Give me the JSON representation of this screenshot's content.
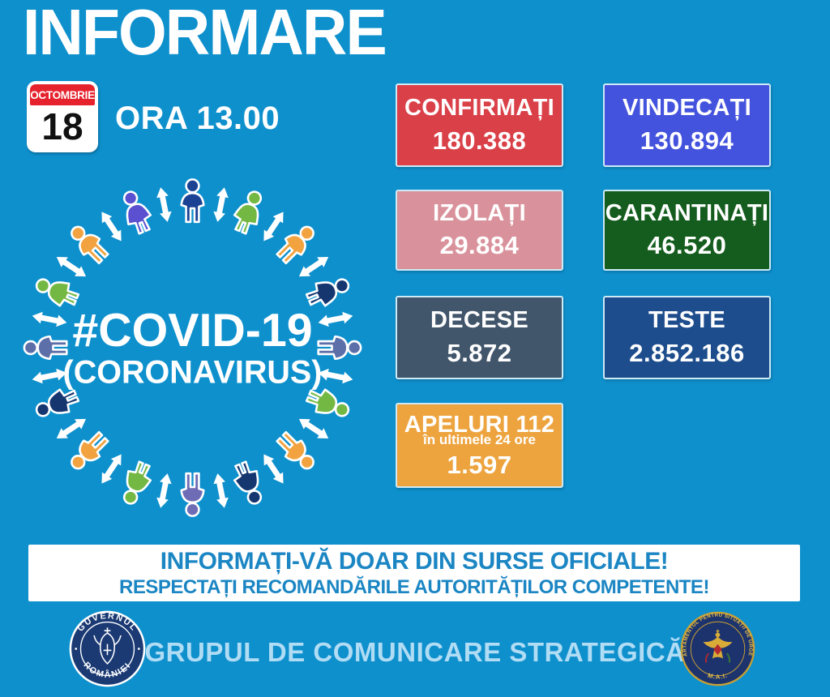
{
  "page": {
    "background": "#0e90cd"
  },
  "header": {
    "title": "INFORMARE",
    "calendar": {
      "month": "OCTOMBRIE",
      "day": "18"
    },
    "time": "ORA 13.00"
  },
  "diagram": {
    "title": "#COVID-19",
    "subtitle": "(CORONAVIRUS)",
    "arrow_color": "#ffffff",
    "figure_colors": [
      "#1c4294",
      "#74b844",
      "#f2a340",
      "#16366f",
      "#5d6fa8",
      "#74b844",
      "#f2a340",
      "#16366f",
      "#6e6cb4",
      "#74b844",
      "#f2a340",
      "#16366f",
      "#5d6fa8",
      "#74b844",
      "#f2a340",
      "#5a50d0"
    ]
  },
  "stats": [
    {
      "id": "confirmati",
      "label": "CONFIRMAȚI",
      "value": "180.388",
      "bg": "#da4048"
    },
    {
      "id": "vindecati",
      "label": "VINDECAȚI",
      "value": "130.894",
      "bg": "#4453dd"
    },
    {
      "id": "izolati",
      "label": "IZOLAȚI",
      "value": "29.884",
      "bg": "#d9929b"
    },
    {
      "id": "carantinati",
      "label": "CARANTINAȚI",
      "value": "46.520",
      "bg": "#155d1e"
    },
    {
      "id": "decese",
      "label": "DECESE",
      "value": "5.872",
      "bg": "#41556b"
    },
    {
      "id": "teste",
      "label": "TESTE",
      "value": "2.852.186",
      "bg": "#1d4d8c"
    },
    {
      "id": "apeluri",
      "label": "APELURI 112",
      "sublabel": "în ultimele 24 ore",
      "value": "1.597",
      "bg": "#eda43f"
    }
  ],
  "banner": {
    "line1": "INFORMAȚI-VĂ DOAR DIN SURSE OFICIALE!",
    "line2": "RESPECTAȚI RECOMANDĂRILE AUTORITĂȚILOR COMPETENTE!",
    "text_color": "#1b86c3"
  },
  "footer": {
    "text": "GRUPUL DE COMUNICARE STRATEGICĂ",
    "gov_seal": {
      "top": "GUVERNUL",
      "bottom": "ROMÂNIEI"
    },
    "dsu_seal": {
      "ring": "DEPARTAMENTUL PENTRU SITUAȚII DE URGENȚĂ",
      "bottom": "M.A.I."
    }
  },
  "chart_data": {
    "type": "table",
    "title": "INFORMARE — ORA 13.00, 18 OCTOMBRIE",
    "categories": [
      "CONFIRMAȚI",
      "VINDECAȚI",
      "IZOLAȚI",
      "CARANTINAȚI",
      "DECESE",
      "TESTE",
      "APELURI 112 în ultimele 24 ore"
    ],
    "values": [
      180388,
      130894,
      29884,
      46520,
      5872,
      2852186,
      1597
    ]
  }
}
